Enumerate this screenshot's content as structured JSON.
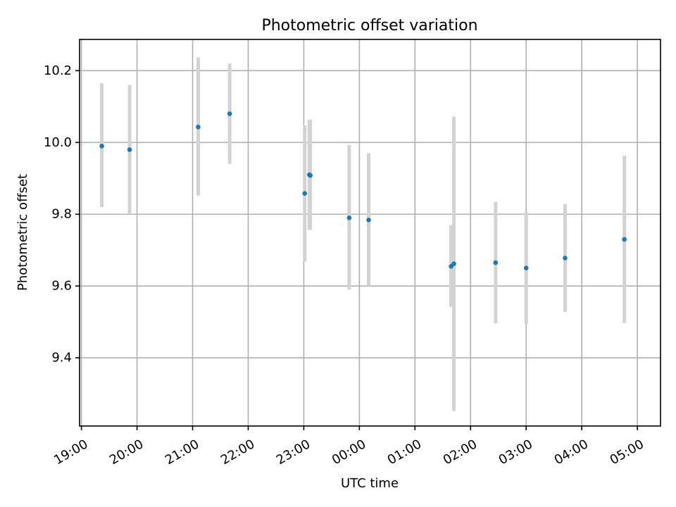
{
  "chart_data": {
    "type": "scatter",
    "title": "Photometric offset variation",
    "xlabel": "UTC time",
    "ylabel": "Photometric offset",
    "x_axis_type": "time",
    "xlim": [
      "18:58",
      "05:25"
    ],
    "ylim": [
      9.21,
      10.287
    ],
    "x_ticks": [
      "19:00",
      "20:00",
      "21:00",
      "22:00",
      "23:00",
      "00:00",
      "01:00",
      "02:00",
      "03:00",
      "04:00",
      "05:00"
    ],
    "y_ticks": [
      9.4,
      9.6,
      9.8,
      10.0,
      10.2
    ],
    "y_tick_labels": [
      "9.4",
      "9.6",
      "9.8",
      "10.0",
      "10.2"
    ],
    "grid": true,
    "marker_color": "#1f77b4",
    "error_bar_color": "#d3d3d3",
    "points": [
      {
        "time": "19:22",
        "y": 9.99,
        "err_low": 9.82,
        "err_high": 10.165
      },
      {
        "time": "19:52",
        "y": 9.98,
        "err_low": 9.8,
        "err_high": 10.16
      },
      {
        "time": "21:06",
        "y": 10.043,
        "err_low": 9.852,
        "err_high": 10.237
      },
      {
        "time": "21:40",
        "y": 10.08,
        "err_low": 9.94,
        "err_high": 10.22
      },
      {
        "time": "23:01",
        "y": 9.858,
        "err_low": 9.668,
        "err_high": 10.048
      },
      {
        "time": "23:06",
        "y": 9.91,
        "err_low": 9.756,
        "err_high": 10.063
      },
      {
        "time": "23:07",
        "y": 9.908,
        "err_low": 9.756,
        "err_high": 10.063
      },
      {
        "time": "23:49",
        "y": 9.79,
        "err_low": 9.59,
        "err_high": 9.993
      },
      {
        "time": "00:10",
        "y": 9.784,
        "err_low": 9.6,
        "err_high": 9.97
      },
      {
        "time": "01:39",
        "y": 9.655,
        "err_low": 9.542,
        "err_high": 9.77
      },
      {
        "time": "01:42",
        "y": 9.662,
        "err_low": 9.252,
        "err_high": 10.072
      },
      {
        "time": "02:27",
        "y": 9.665,
        "err_low": 9.496,
        "err_high": 9.834
      },
      {
        "time": "03:00",
        "y": 9.65,
        "err_low": 9.494,
        "err_high": 9.806
      },
      {
        "time": "03:42",
        "y": 9.678,
        "err_low": 9.528,
        "err_high": 9.828
      },
      {
        "time": "04:46",
        "y": 9.73,
        "err_low": 9.497,
        "err_high": 9.963
      }
    ]
  }
}
